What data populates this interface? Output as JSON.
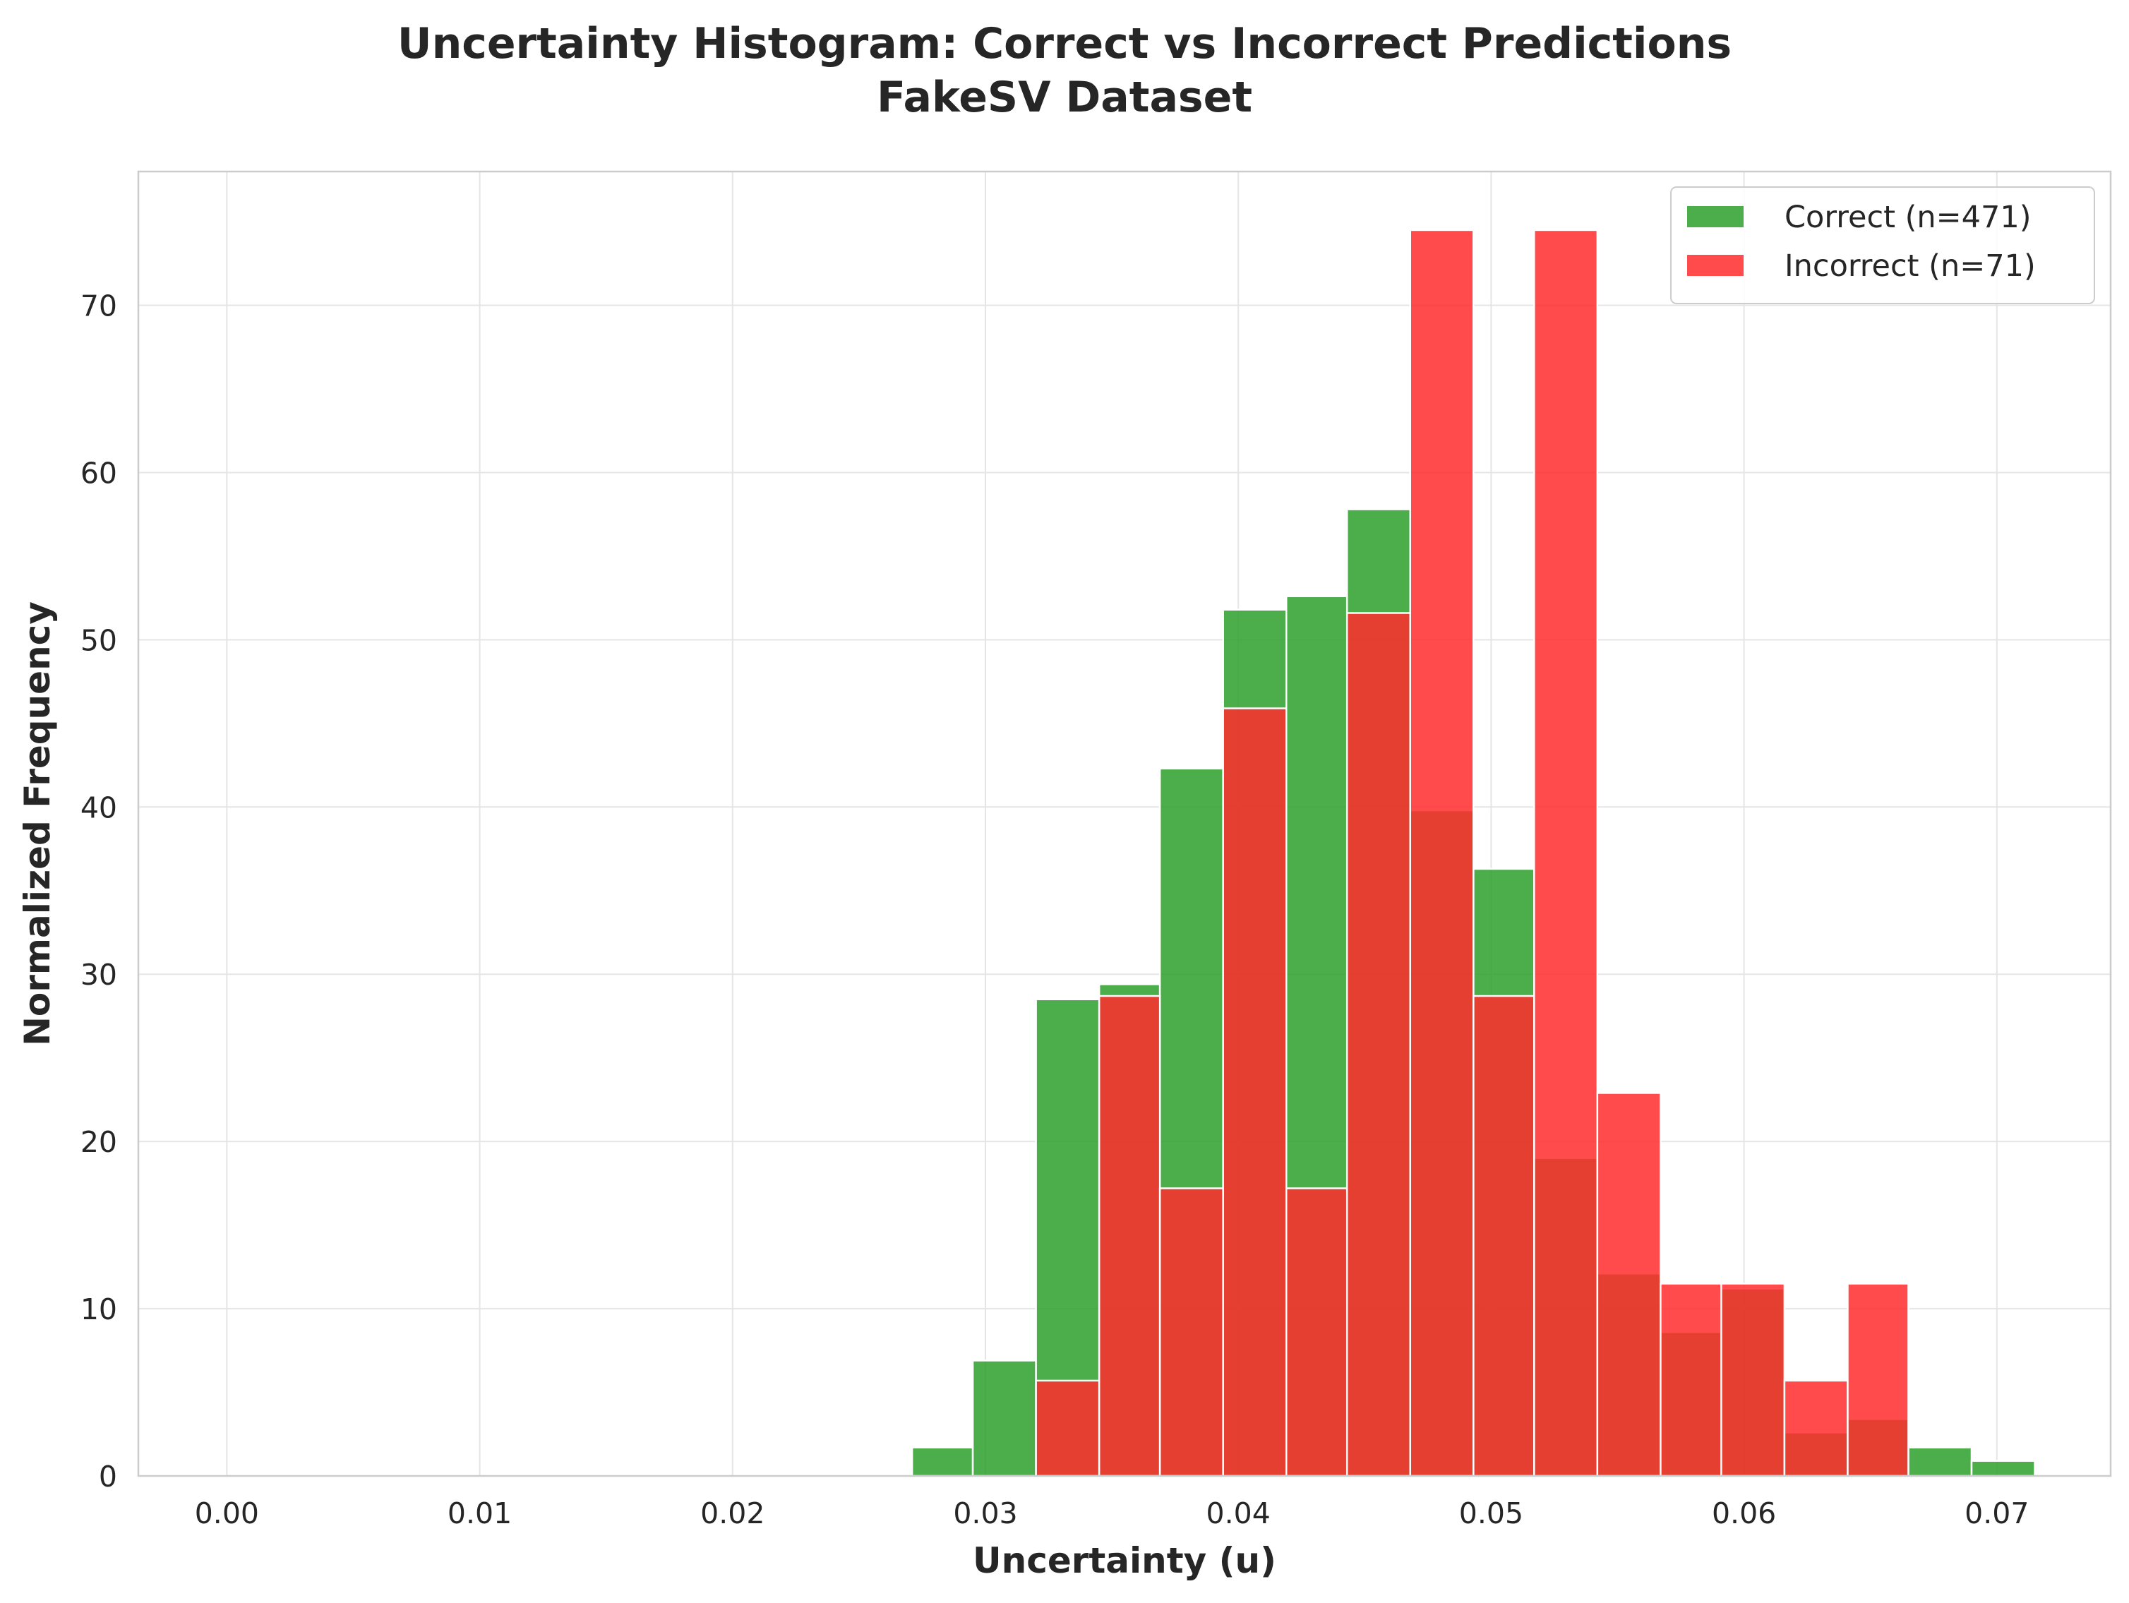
{
  "chart_data": {
    "type": "bar",
    "title_line1": "Uncertainty Histogram: Correct vs Incorrect Predictions",
    "title_line2": "FakeSV Dataset",
    "xlabel": "Uncertainty (u)",
    "ylabel": "Normalized Frequency",
    "xlim": [
      -0.0035,
      0.0745
    ],
    "ylim": [
      0,
      78
    ],
    "xticks": [
      0.0,
      0.01,
      0.02,
      0.03,
      0.04,
      0.05,
      0.06,
      0.07
    ],
    "xtick_labels": [
      "0.00",
      "0.01",
      "0.02",
      "0.03",
      "0.04",
      "0.05",
      "0.06",
      "0.07"
    ],
    "yticks": [
      0,
      10,
      20,
      30,
      40,
      50,
      60,
      70
    ],
    "ytick_labels": [
      "0",
      "10",
      "20",
      "30",
      "40",
      "50",
      "60",
      "70"
    ],
    "grid": true,
    "legend_position": "top-right",
    "bins": [
      [
        0.0271,
        0.0295
      ],
      [
        0.0295,
        0.032
      ],
      [
        0.032,
        0.0345
      ],
      [
        0.0345,
        0.0369
      ],
      [
        0.0369,
        0.0394
      ],
      [
        0.0394,
        0.0419
      ],
      [
        0.0419,
        0.0443
      ],
      [
        0.0443,
        0.0468
      ],
      [
        0.0468,
        0.0493
      ],
      [
        0.0493,
        0.0517
      ],
      [
        0.0517,
        0.0542
      ],
      [
        0.0542,
        0.0567
      ],
      [
        0.0567,
        0.0591
      ],
      [
        0.0591,
        0.0616
      ],
      [
        0.0616,
        0.0641
      ],
      [
        0.0641,
        0.0665
      ],
      [
        0.0665,
        0.069
      ],
      [
        0.069,
        0.0715
      ]
    ],
    "series": [
      {
        "name": "Correct (n=471)",
        "color": "#2ca02c",
        "opacity": 0.85,
        "values": [
          1.7,
          6.9,
          28.5,
          29.4,
          42.3,
          51.8,
          52.6,
          57.8,
          39.8,
          36.3,
          19.0,
          12.1,
          8.6,
          11.2,
          2.6,
          3.4,
          1.7,
          0.9
        ]
      },
      {
        "name": "Incorrect (n=71)",
        "color": "#ff2b2b",
        "opacity": 0.85,
        "values": [
          0,
          0,
          5.7,
          28.7,
          17.2,
          45.9,
          17.2,
          51.6,
          74.5,
          28.7,
          74.5,
          22.9,
          11.5,
          11.5,
          5.7,
          11.5,
          0,
          0
        ]
      }
    ]
  }
}
